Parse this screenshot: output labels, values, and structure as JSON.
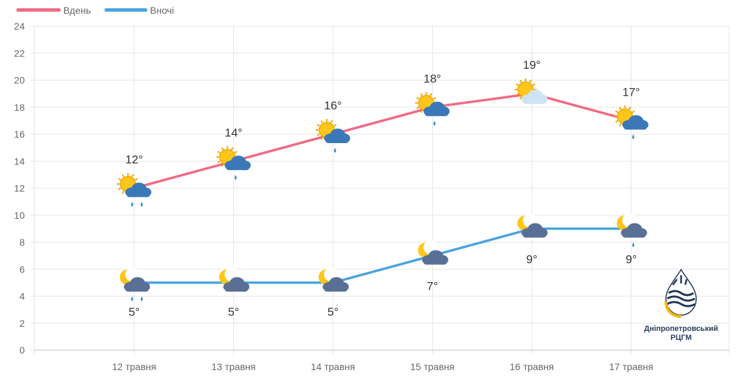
{
  "colors": {
    "day": "#f16a85",
    "night": "#4aa3df",
    "grid": "#e6e6e6",
    "axis": "#bfbfbf",
    "logo_gold": "#f2b60a",
    "logo_navy": "#1f3557"
  },
  "organization": {
    "name": "Дніпропетровський",
    "abbr": "РЦГМ"
  },
  "chart_data": {
    "type": "line",
    "categories": [
      "12 травня",
      "13 травня",
      "14 травня",
      "15 травня",
      "16 травня",
      "17 травня"
    ],
    "series": [
      {
        "name": "Вдень",
        "values": [
          12,
          14,
          16,
          18,
          19,
          17
        ],
        "labels": [
          "12°",
          "14°",
          "16°",
          "18°",
          "19°",
          "17°"
        ],
        "icons": [
          "sun-cloud-rain-icon",
          "sun-cloud-rain-icon",
          "sun-cloud-rain-icon",
          "sun-cloud-rain-icon",
          "sun-cloud-icon",
          "sun-cloud-rain-icon"
        ]
      },
      {
        "name": "Вночі",
        "values": [
          5,
          5,
          5,
          7,
          9,
          9
        ],
        "labels": [
          "5°",
          "5°",
          "5°",
          "7°",
          "9°",
          "9°"
        ],
        "icons": [
          "moon-cloud-rain-icon",
          "moon-cloud-icon",
          "moon-cloud-icon",
          "moon-cloud-icon",
          "moon-cloud-icon",
          "moon-cloud-rain-icon"
        ]
      }
    ],
    "yticks": [
      "0",
      "2",
      "4",
      "6",
      "8",
      "10",
      "12",
      "14",
      "16",
      "18",
      "20",
      "22",
      "24"
    ],
    "ylim": [
      0,
      24
    ],
    "grid": true,
    "legend_position": "top-left"
  }
}
